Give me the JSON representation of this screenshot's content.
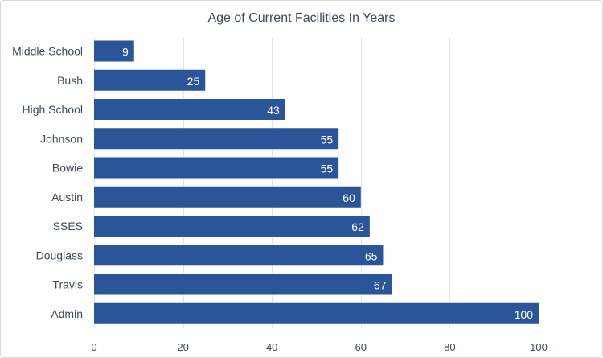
{
  "chart_data": {
    "type": "bar",
    "orientation": "horizontal",
    "title": "Age of Current Facilities In Years",
    "categories": [
      "Middle School",
      "Bush",
      "High School",
      "Johnson",
      "Bowie",
      "Austin",
      "SSES",
      "Douglass",
      "Travis",
      "Admin"
    ],
    "values": [
      9,
      25,
      43,
      55,
      55,
      60,
      62,
      65,
      67,
      100
    ],
    "xlim": [
      0,
      100
    ],
    "xticks": [
      0,
      20,
      40,
      60,
      80,
      100
    ],
    "grid": true,
    "legend": "none",
    "data_labels": true,
    "colors": {
      "bar": "#2a5599",
      "grid": "#e3e3e3",
      "text": "#3c4a5c",
      "label": "#ffffff"
    }
  }
}
